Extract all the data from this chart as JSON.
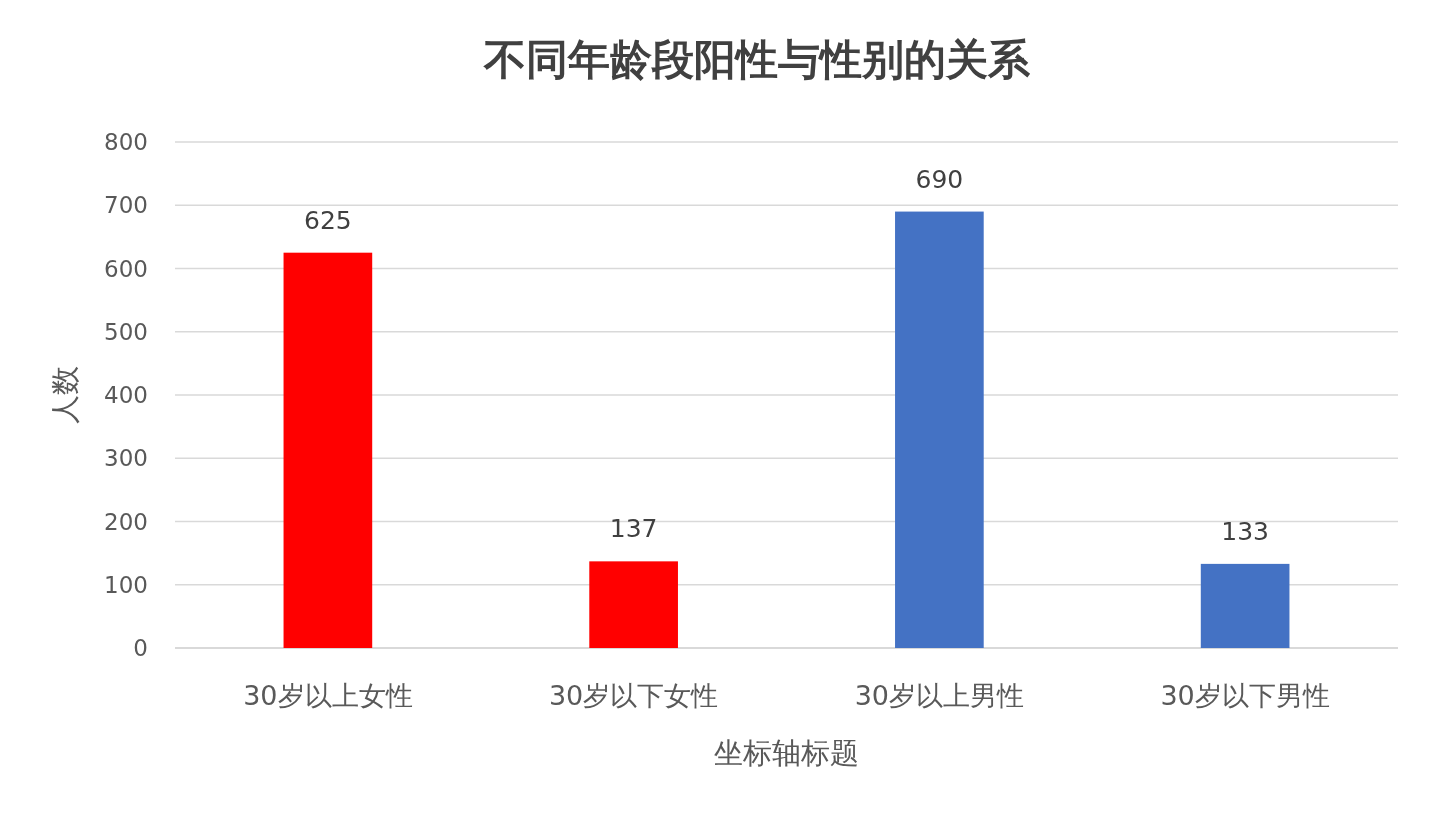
{
  "chart_data": {
    "type": "bar",
    "title": "不同年龄段阳性与性别的关系",
    "xlabel": "坐标轴标题",
    "ylabel": "人数",
    "categories": [
      "30岁以上女性",
      "30岁以下女性",
      "30岁以上男性",
      "30岁以下男性"
    ],
    "values": [
      625,
      137,
      690,
      133
    ],
    "colors": [
      "#ff0000",
      "#ff0000",
      "#4472c4",
      "#4472c4"
    ],
    "ylim": [
      0,
      800
    ],
    "yticks": [
      0,
      100,
      200,
      300,
      400,
      500,
      600,
      700,
      800
    ],
    "grid": "y",
    "data_labels": true
  }
}
